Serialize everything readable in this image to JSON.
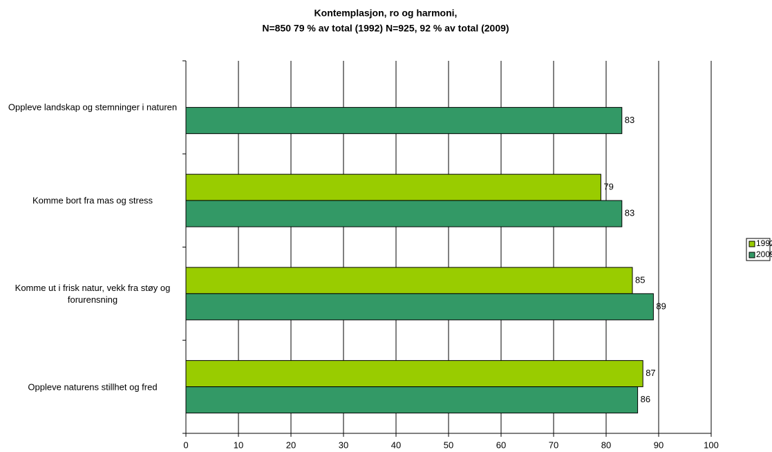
{
  "chart_data": {
    "type": "bar",
    "orientation": "horizontal",
    "title": [
      "Kontemplasjon, ro og harmoni,",
      "N=850 79 % av total (1992) N=925, 92 % av total (2009)"
    ],
    "categories": [
      "Oppleve landskap og stemninger i naturen",
      "Komme bort fra mas og stress",
      "Komme ut i frisk natur, vekk fra støy og forurensning",
      "Oppleve naturens stillhet og fred"
    ],
    "series": [
      {
        "name": "1992",
        "color": "#99cc00",
        "values": [
          null,
          79,
          85,
          87
        ]
      },
      {
        "name": "2009",
        "color": "#339966",
        "values": [
          83,
          83,
          89,
          86
        ]
      }
    ],
    "xlim": [
      0,
      100
    ],
    "xticks": [
      0,
      10,
      20,
      30,
      40,
      50,
      60,
      70,
      80,
      90,
      100
    ],
    "grid": true,
    "legend": "right"
  }
}
